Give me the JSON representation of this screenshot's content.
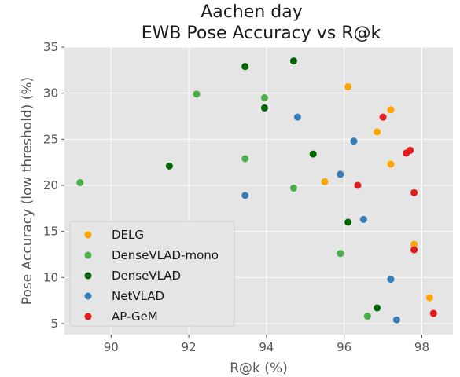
{
  "chart_data": {
    "type": "scatter",
    "title_line1": "Aachen day",
    "title_line2": "EWB Pose Accuracy vs R@k",
    "xlabel": "R@k (%)",
    "ylabel": "Pose Accuracy (low threshold) (%)",
    "xlim": [
      88.8,
      98.8
    ],
    "ylim": [
      3.8,
      35.0
    ],
    "xticks": [
      90,
      92,
      94,
      96,
      98
    ],
    "yticks": [
      5,
      10,
      15,
      20,
      25,
      30,
      35
    ],
    "grid": true,
    "legend_position": "lower-left",
    "series": [
      {
        "name": "DELG",
        "color": "#ffa500",
        "points": [
          [
            96.1,
            30.7
          ],
          [
            97.2,
            28.2
          ],
          [
            96.85,
            25.8
          ],
          [
            97.2,
            22.3
          ],
          [
            95.5,
            20.4
          ],
          [
            97.8,
            13.6
          ],
          [
            98.2,
            7.8
          ]
        ]
      },
      {
        "name": "DenseVLAD-mono",
        "color": "#4daf4a",
        "points": [
          [
            89.2,
            20.3
          ],
          [
            92.2,
            29.9
          ],
          [
            93.95,
            29.5
          ],
          [
            93.45,
            22.9
          ],
          [
            94.7,
            19.7
          ],
          [
            95.9,
            12.6
          ],
          [
            96.6,
            5.8
          ]
        ]
      },
      {
        "name": "DenseVLAD",
        "color": "#006400",
        "points": [
          [
            94.7,
            33.5
          ],
          [
            93.45,
            32.9
          ],
          [
            93.95,
            28.4
          ],
          [
            95.2,
            23.4
          ],
          [
            91.5,
            22.1
          ],
          [
            96.1,
            16.0
          ],
          [
            96.85,
            6.7
          ]
        ]
      },
      {
        "name": "NetVLAD",
        "color": "#377eb8",
        "points": [
          [
            94.8,
            27.4
          ],
          [
            96.25,
            24.8
          ],
          [
            95.9,
            21.2
          ],
          [
            93.45,
            18.9
          ],
          [
            96.5,
            16.3
          ],
          [
            97.2,
            9.8
          ],
          [
            97.35,
            5.4
          ]
        ]
      },
      {
        "name": "AP-GeM",
        "color": "#e41a1c",
        "points": [
          [
            97.0,
            27.4
          ],
          [
            97.7,
            23.8
          ],
          [
            97.6,
            23.5
          ],
          [
            96.35,
            20.0
          ],
          [
            97.8,
            19.2
          ],
          [
            97.8,
            13.0
          ],
          [
            98.3,
            6.1
          ]
        ]
      }
    ]
  }
}
